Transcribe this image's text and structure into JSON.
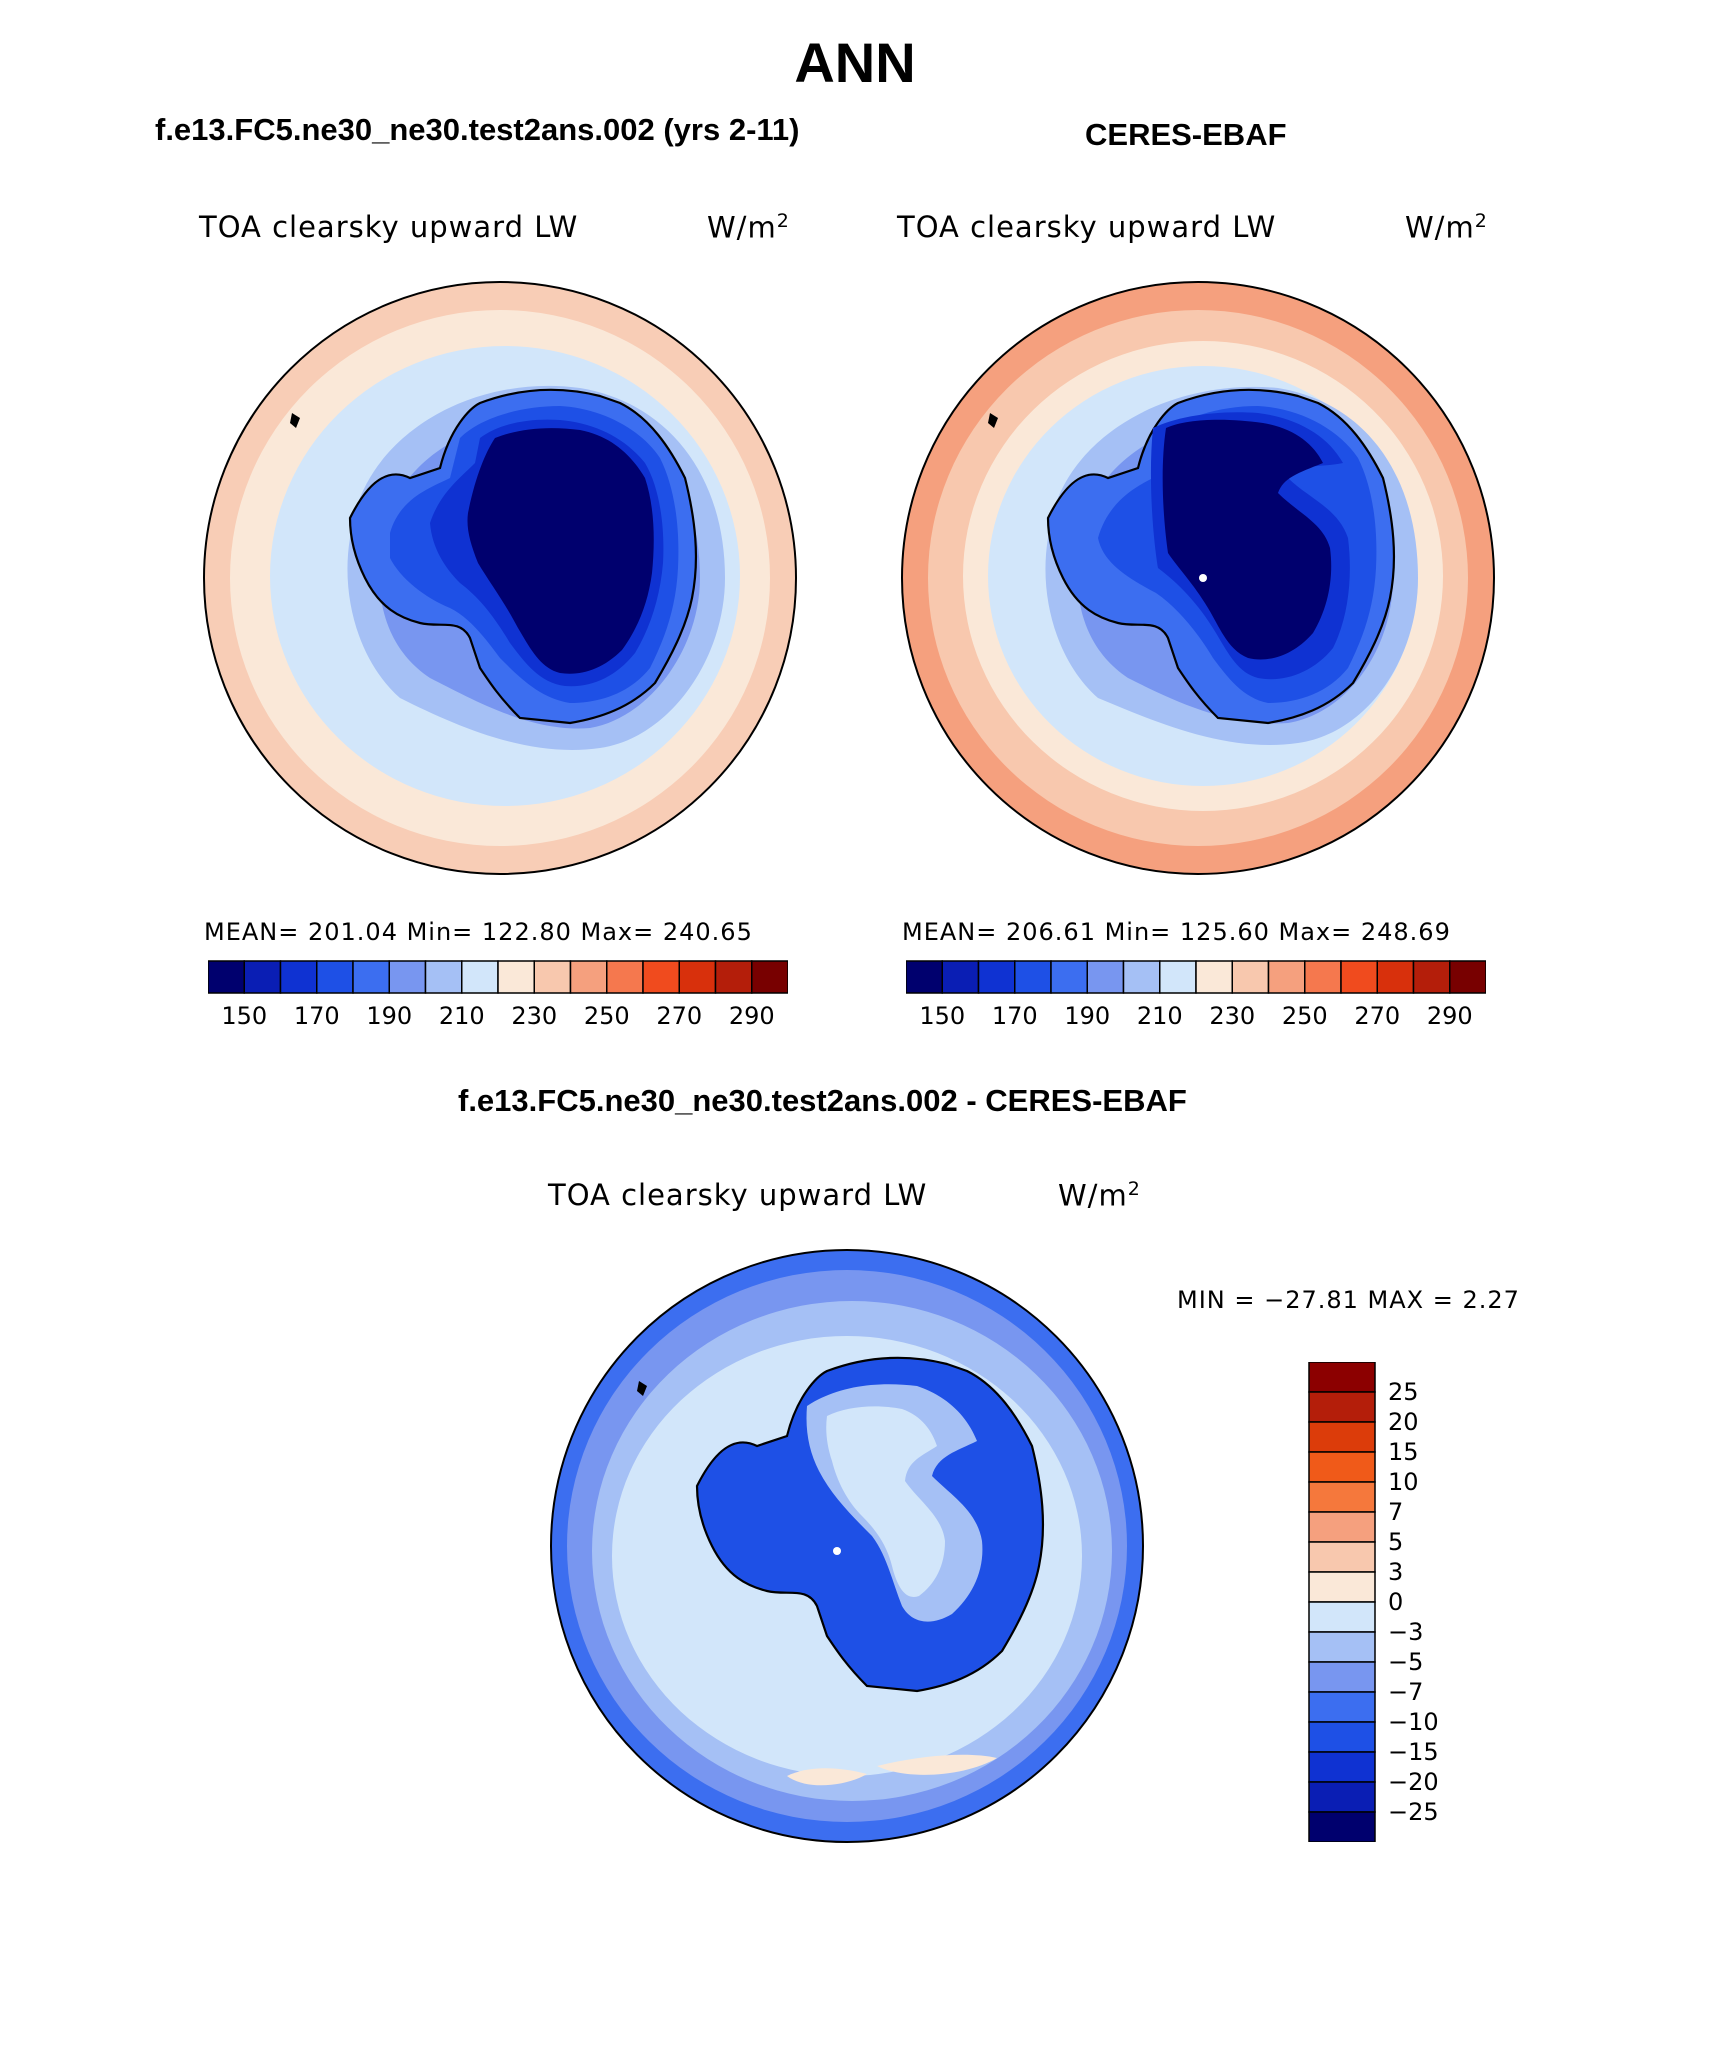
{
  "title": "ANN",
  "panels": [
    {
      "id": "model",
      "title": "f.e13.FC5.ne30_ne30.test2ans.002 (yrs 2-11)",
      "variable": "TOA clearsky upward LW",
      "units": "W/m",
      "units_exp": "2",
      "stats_text": "MEAN= 201.04   Min= 122.80   Max= 240.65",
      "mean": 201.04,
      "min": 122.8,
      "max": 240.65
    },
    {
      "id": "obs",
      "title": "CERES-EBAF",
      "variable": "TOA clearsky upward LW",
      "units": "W/m",
      "units_exp": "2",
      "stats_text": "MEAN= 206.61   Min= 125.60   Max= 248.69",
      "mean": 206.61,
      "min": 125.6,
      "max": 248.69
    },
    {
      "id": "diff",
      "title": "f.e13.FC5.ne30_ne30.test2ans.002 - CERES-EBAF",
      "variable": "TOA clearsky upward LW",
      "units": "W/m",
      "units_exp": "2",
      "stats_text": "MIN = −27.81 MAX =    2.27",
      "min": -27.81,
      "max": 2.27
    }
  ],
  "colorbar_field": {
    "tick_labels": [
      "150",
      "170",
      "190",
      "210",
      "230",
      "250",
      "270",
      "290"
    ],
    "colors": [
      "#00006e",
      "#0a1eb4",
      "#0f32d2",
      "#1e50e6",
      "#3c6ef0",
      "#7896f0",
      "#a5c0f5",
      "#d2e6fa",
      "#fae8d8",
      "#f8c8ae",
      "#f5a07e",
      "#f5784e",
      "#f04b1e",
      "#d8300c",
      "#b41e0a",
      "#780000"
    ]
  },
  "colorbar_diff": {
    "tick_labels": [
      "25",
      "20",
      "15",
      "10",
      "7",
      "5",
      "3",
      "0",
      "−3",
      "−5",
      "−7",
      "−10",
      "−15",
      "−20",
      "−25"
    ],
    "colors": [
      "#8c0000",
      "#b41e0a",
      "#dc3c0a",
      "#f05a19",
      "#f5783c",
      "#f5a07e",
      "#f8c8ae",
      "#fae8d8",
      "#d2e6fa",
      "#a5c0f5",
      "#7896f0",
      "#3c6ef0",
      "#1e50e6",
      "#0f32d2",
      "#0a1eb4",
      "#00006e"
    ]
  }
}
